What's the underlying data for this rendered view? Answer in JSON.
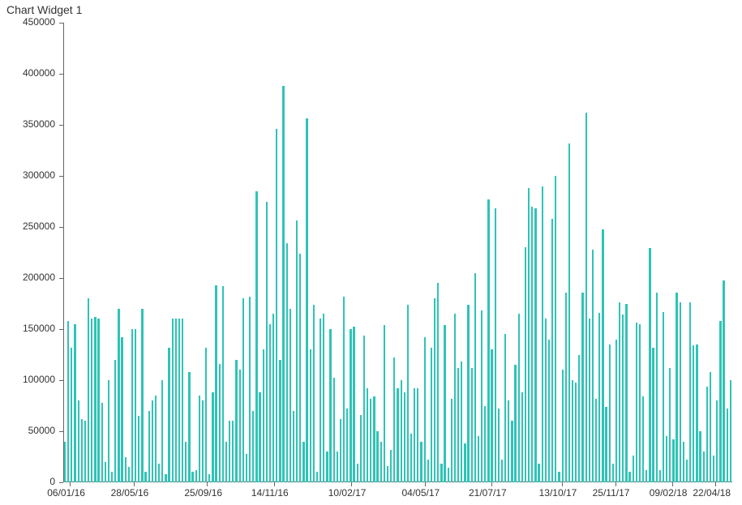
{
  "chart": {
    "type": "bar",
    "title": "Chart Widget 1",
    "title_fontsize": 14,
    "title_color": "#333333",
    "background_color": "#ffffff",
    "axis_color": "#666666",
    "tick_label_color": "#333333",
    "tick_label_fontsize": 12,
    "bar_color": "#2ec4b6",
    "bar_width_ratio": 0.55,
    "y": {
      "min": 0,
      "max": 450000,
      "ticks": [
        0,
        50000,
        100000,
        150000,
        200000,
        250000,
        300000,
        350000,
        400000,
        450000
      ]
    },
    "x_tick_labels": [
      "06/01/16",
      "28/05/16",
      "25/09/16",
      "14/11/16",
      "10/02/17",
      "04/05/17",
      "21/07/17",
      "13/10/17",
      "25/11/17",
      "09/02/18",
      "22/04/18"
    ],
    "x_tick_positions": [
      0.01,
      0.105,
      0.215,
      0.315,
      0.43,
      0.54,
      0.64,
      0.745,
      0.825,
      0.91,
      0.975
    ],
    "values": [
      40000,
      158000,
      132000,
      155000,
      80000,
      62000,
      60000,
      180000,
      160000,
      162000,
      160000,
      78000,
      20000,
      100000,
      10000,
      120000,
      170000,
      142000,
      25000,
      15000,
      150000,
      150000,
      65000,
      170000,
      10000,
      70000,
      80000,
      85000,
      18000,
      100000,
      8000,
      132000,
      160000,
      160000,
      160000,
      160000,
      40000,
      108000,
      10000,
      12000,
      85000,
      80000,
      132000,
      8000,
      88000,
      193000,
      116000,
      192000,
      40000,
      60000,
      60000,
      120000,
      110000,
      180000,
      28000,
      182000,
      70000,
      285000,
      88000,
      130000,
      275000,
      155000,
      165000,
      346000,
      120000,
      388000,
      234000,
      170000,
      70000,
      256000,
      224000,
      40000,
      356000,
      130000,
      174000,
      10000,
      160000,
      165000,
      30000,
      150000,
      102000,
      30000,
      62000,
      182000,
      72000,
      150000,
      152000,
      18000,
      66000,
      144000,
      92000,
      82000,
      84000,
      50000,
      40000,
      154000,
      16000,
      32000,
      122000,
      92000,
      100000,
      88000,
      174000,
      48000,
      92000,
      92000,
      40000,
      142000,
      22000,
      132000,
      180000,
      195000,
      18000,
      154000,
      14000,
      82000,
      165000,
      112000,
      118000,
      38000,
      174000,
      112000,
      205000,
      45000,
      168000,
      75000,
      277000,
      130000,
      268000,
      72000,
      22000,
      145000,
      80000,
      60000,
      115000,
      165000,
      88000,
      230000,
      288000,
      270000,
      268000,
      18000,
      290000,
      160000,
      140000,
      258000,
      300000,
      10000,
      110000,
      186000,
      332000,
      100000,
      98000,
      125000,
      186000,
      362000,
      160000,
      228000,
      82000,
      166000,
      248000,
      74000,
      135000,
      18000,
      140000,
      176000,
      164000,
      175000,
      10000,
      26000,
      156000,
      155000,
      84000,
      12000,
      229000,
      132000,
      186000,
      12000,
      167000,
      45000,
      112000,
      42000,
      186000,
      176000,
      40000,
      22000,
      176000,
      134000,
      135000,
      50000,
      30000,
      94000,
      108000,
      26000,
      80000,
      158000,
      198000,
      72000,
      100000
    ]
  }
}
